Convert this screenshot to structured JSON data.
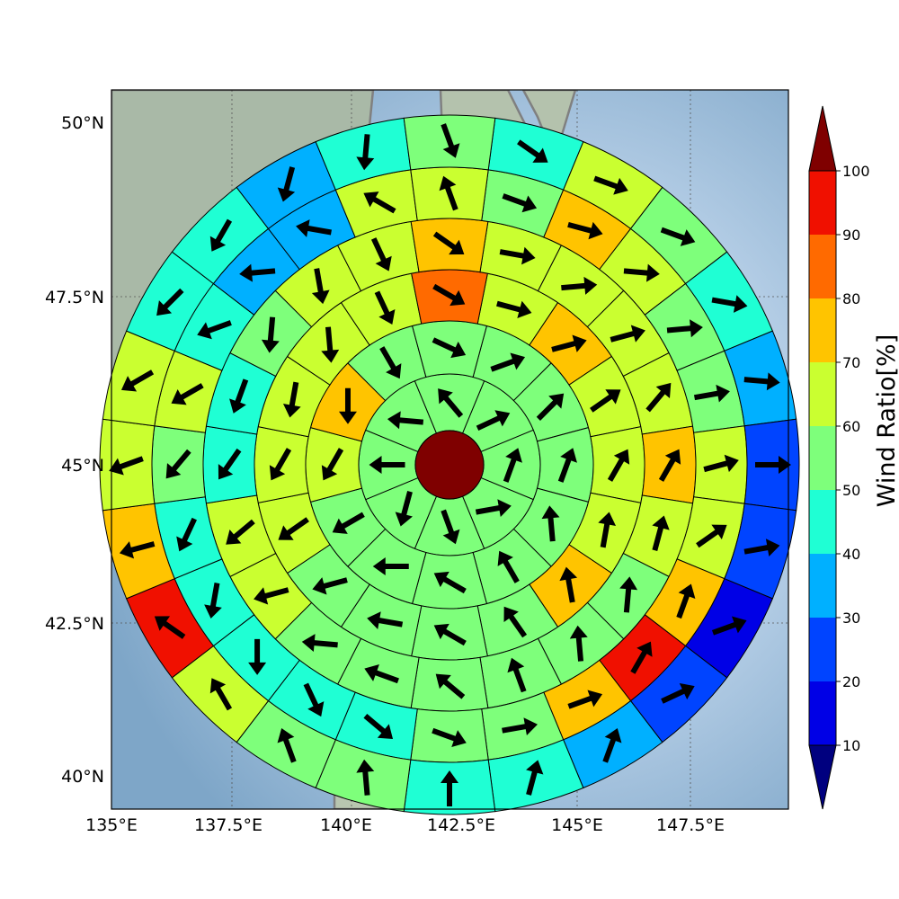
{
  "map": {
    "lon_ticks": [
      "135°E",
      "137.5°E",
      "140°E",
      "142.5°E",
      "145°E",
      "147.5°E"
    ],
    "lat_ticks": [
      "50°N",
      "47.5°N",
      "45°N",
      "42.5°N",
      "40°N"
    ],
    "extent": {
      "lon": [
        135,
        149.5
      ],
      "lat": [
        39.5,
        50.5
      ]
    },
    "gridlines": true
  },
  "colorbar": {
    "label": "Wind Ratio[%]",
    "ticks": [
      "10",
      "20",
      "30",
      "40",
      "50",
      "60",
      "70",
      "80",
      "90",
      "100"
    ],
    "bounds": [
      10,
      20,
      30,
      40,
      50,
      60,
      70,
      80,
      90,
      100
    ],
    "colors": [
      "#0000e6",
      "#0044ff",
      "#00b0ff",
      "#1fffd4",
      "#7eff7b",
      "#caff30",
      "#ffc400",
      "#ff6a00",
      "#f01000"
    ],
    "under_color": "#00007f",
    "over_color": "#7f0000"
  },
  "colors": {
    "center": "#7f0000",
    "arrow": "#000000",
    "coastline": "#808080",
    "sea": "#9ebfdc"
  },
  "chart_data": {
    "type": "polar_sector_map",
    "center": {
      "lon": 142.5,
      "lat": 45.0,
      "value": 100
    },
    "direction_convention": "arrow angle in degrees, 0 = east, counterclockwise",
    "rings": [
      {
        "ring": 1,
        "values": [
          55,
          55,
          55,
          55,
          55,
          55,
          55,
          55
        ],
        "arrows": [
          25,
          70,
          10,
          -70,
          -105,
          -180,
          175,
          130
        ]
      },
      {
        "ring": 2,
        "values": [
          55,
          55,
          55,
          55,
          55,
          55,
          55,
          55,
          60,
          75,
          55,
          55
        ],
        "arrows": [
          20,
          45,
          70,
          95,
          120,
          150,
          180,
          -150,
          -120,
          -90,
          -60,
          -25
        ]
      },
      {
        "ring": 3,
        "values": [
          60,
          70,
          60,
          60,
          60,
          75,
          55,
          55,
          50,
          55,
          60,
          60,
          60,
          60,
          65,
          85
        ],
        "arrows": [
          -15,
          15,
          35,
          60,
          80,
          100,
          125,
          150,
          170,
          -165,
          -145,
          -120,
          -100,
          -85,
          -65,
          -30
        ]
      },
      {
        "ring": 4,
        "values": [
          60,
          65,
          65,
          65,
          75,
          65,
          55,
          55,
          55,
          55,
          55,
          55,
          65,
          65,
          45,
          45,
          55,
          65,
          65,
          75
        ],
        "arrows": [
          -10,
          5,
          15,
          50,
          60,
          75,
          85,
          95,
          110,
          140,
          160,
          175,
          -165,
          -140,
          -125,
          -110,
          -95,
          -80,
          -65,
          -35
        ]
      },
      {
        "ring": 5,
        "values": [
          55,
          75,
          65,
          55,
          55,
          65,
          65,
          75,
          95,
          75,
          55,
          55,
          45,
          45,
          45,
          45,
          45,
          55,
          65,
          45,
          35,
          35,
          65,
          65
        ],
        "arrows": [
          -20,
          -15,
          -5,
          5,
          10,
          15,
          35,
          70,
          60,
          20,
          10,
          -20,
          -40,
          -65,
          -90,
          -100,
          -115,
          -130,
          -150,
          -160,
          -175,
          170,
          150,
          110
        ]
      },
      {
        "ring": 6,
        "values": [
          45,
          65,
          55,
          45,
          35,
          25,
          25,
          15,
          25,
          35,
          45,
          45,
          55,
          55,
          65,
          95,
          75,
          65,
          65,
          45,
          45,
          35,
          45,
          55
        ],
        "arrows": [
          -35,
          -20,
          -20,
          -10,
          -5,
          0,
          10,
          20,
          25,
          70,
          75,
          90,
          95,
          110,
          120,
          145,
          -165,
          -160,
          -150,
          -135,
          -120,
          -105,
          -95,
          -70
        ]
      }
    ]
  }
}
